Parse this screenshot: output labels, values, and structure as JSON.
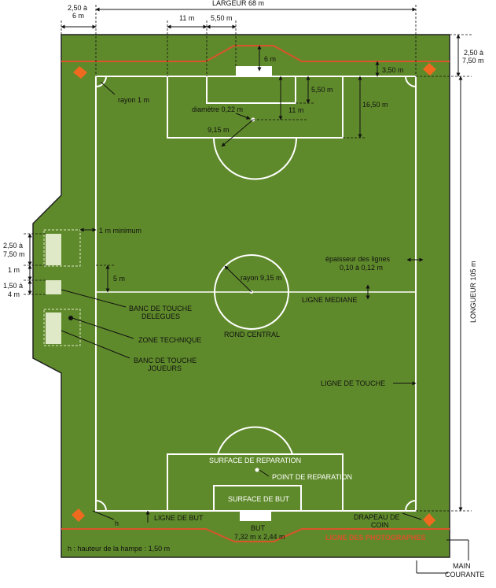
{
  "colors": {
    "grass": "#5f8a2b",
    "line": "#ffffff",
    "red_line": "#d9542b",
    "flag": "#ef6a1e",
    "bench": "#dfe8c7"
  },
  "dims": {
    "largeur": "LARGEUR 68 m",
    "margin_top": "2,50 à",
    "margin_top2": "6 m",
    "d11_top": "11 m",
    "d550_top": "5,50 m",
    "d6": "6 m",
    "d350": "3,50 m",
    "d550_right": "5,50 m",
    "d11_right": "11 m",
    "d1650": "16,50 m",
    "diametre": "diamètre 0,22 m",
    "d915": "9,15 m",
    "rayon1": "rayon 1 m",
    "margin_right": "2,50 à",
    "margin_right2": "7,50 m",
    "longueur": "LONGUEUR 105 m",
    "un_m_min": "1 m minimum",
    "left_250": "2,50 à",
    "left_750": "7,50 m",
    "left_1m": "1 m",
    "left_150": "1,50 à",
    "left_4m": "4 m",
    "d5m": "5 m",
    "rayon915": "rayon 9,15 m",
    "epaisseur": "épaisseur des lignes",
    "epaisseur2": "0,10 à 0,12 m"
  },
  "labels": {
    "ligne_mediane": "LIGNE MEDIANE",
    "rond_central": "ROND CENTRAL",
    "banc_delegues": "BANC DE TOUCHE",
    "banc_delegues2": "DELEGUES",
    "zone_technique": "ZONE TECHNIQUE",
    "banc_joueurs": "BANC DE TOUCHE",
    "banc_joueurs2": "JOUEURS",
    "ligne_touche": "LIGNE DE TOUCHE",
    "surface_reparation": "SURFACE DE REPARATION",
    "point_reparation": "POINT DE REPARATION",
    "surface_but": "SURFACE DE BUT",
    "ligne_but": "LIGNE DE BUT",
    "h": "h",
    "but": "BUT",
    "but_dim": "7,32 m x 2,44 m",
    "drapeau": "DRAPEAU DE",
    "drapeau2": "COIN",
    "ligne_photographes": "LIGNE DES PHOTOGRAPHES",
    "hampe": "h : hauteur de la hampe : 1,50 m",
    "main_courante": "MAIN",
    "main_courante2": "COURANTE"
  }
}
